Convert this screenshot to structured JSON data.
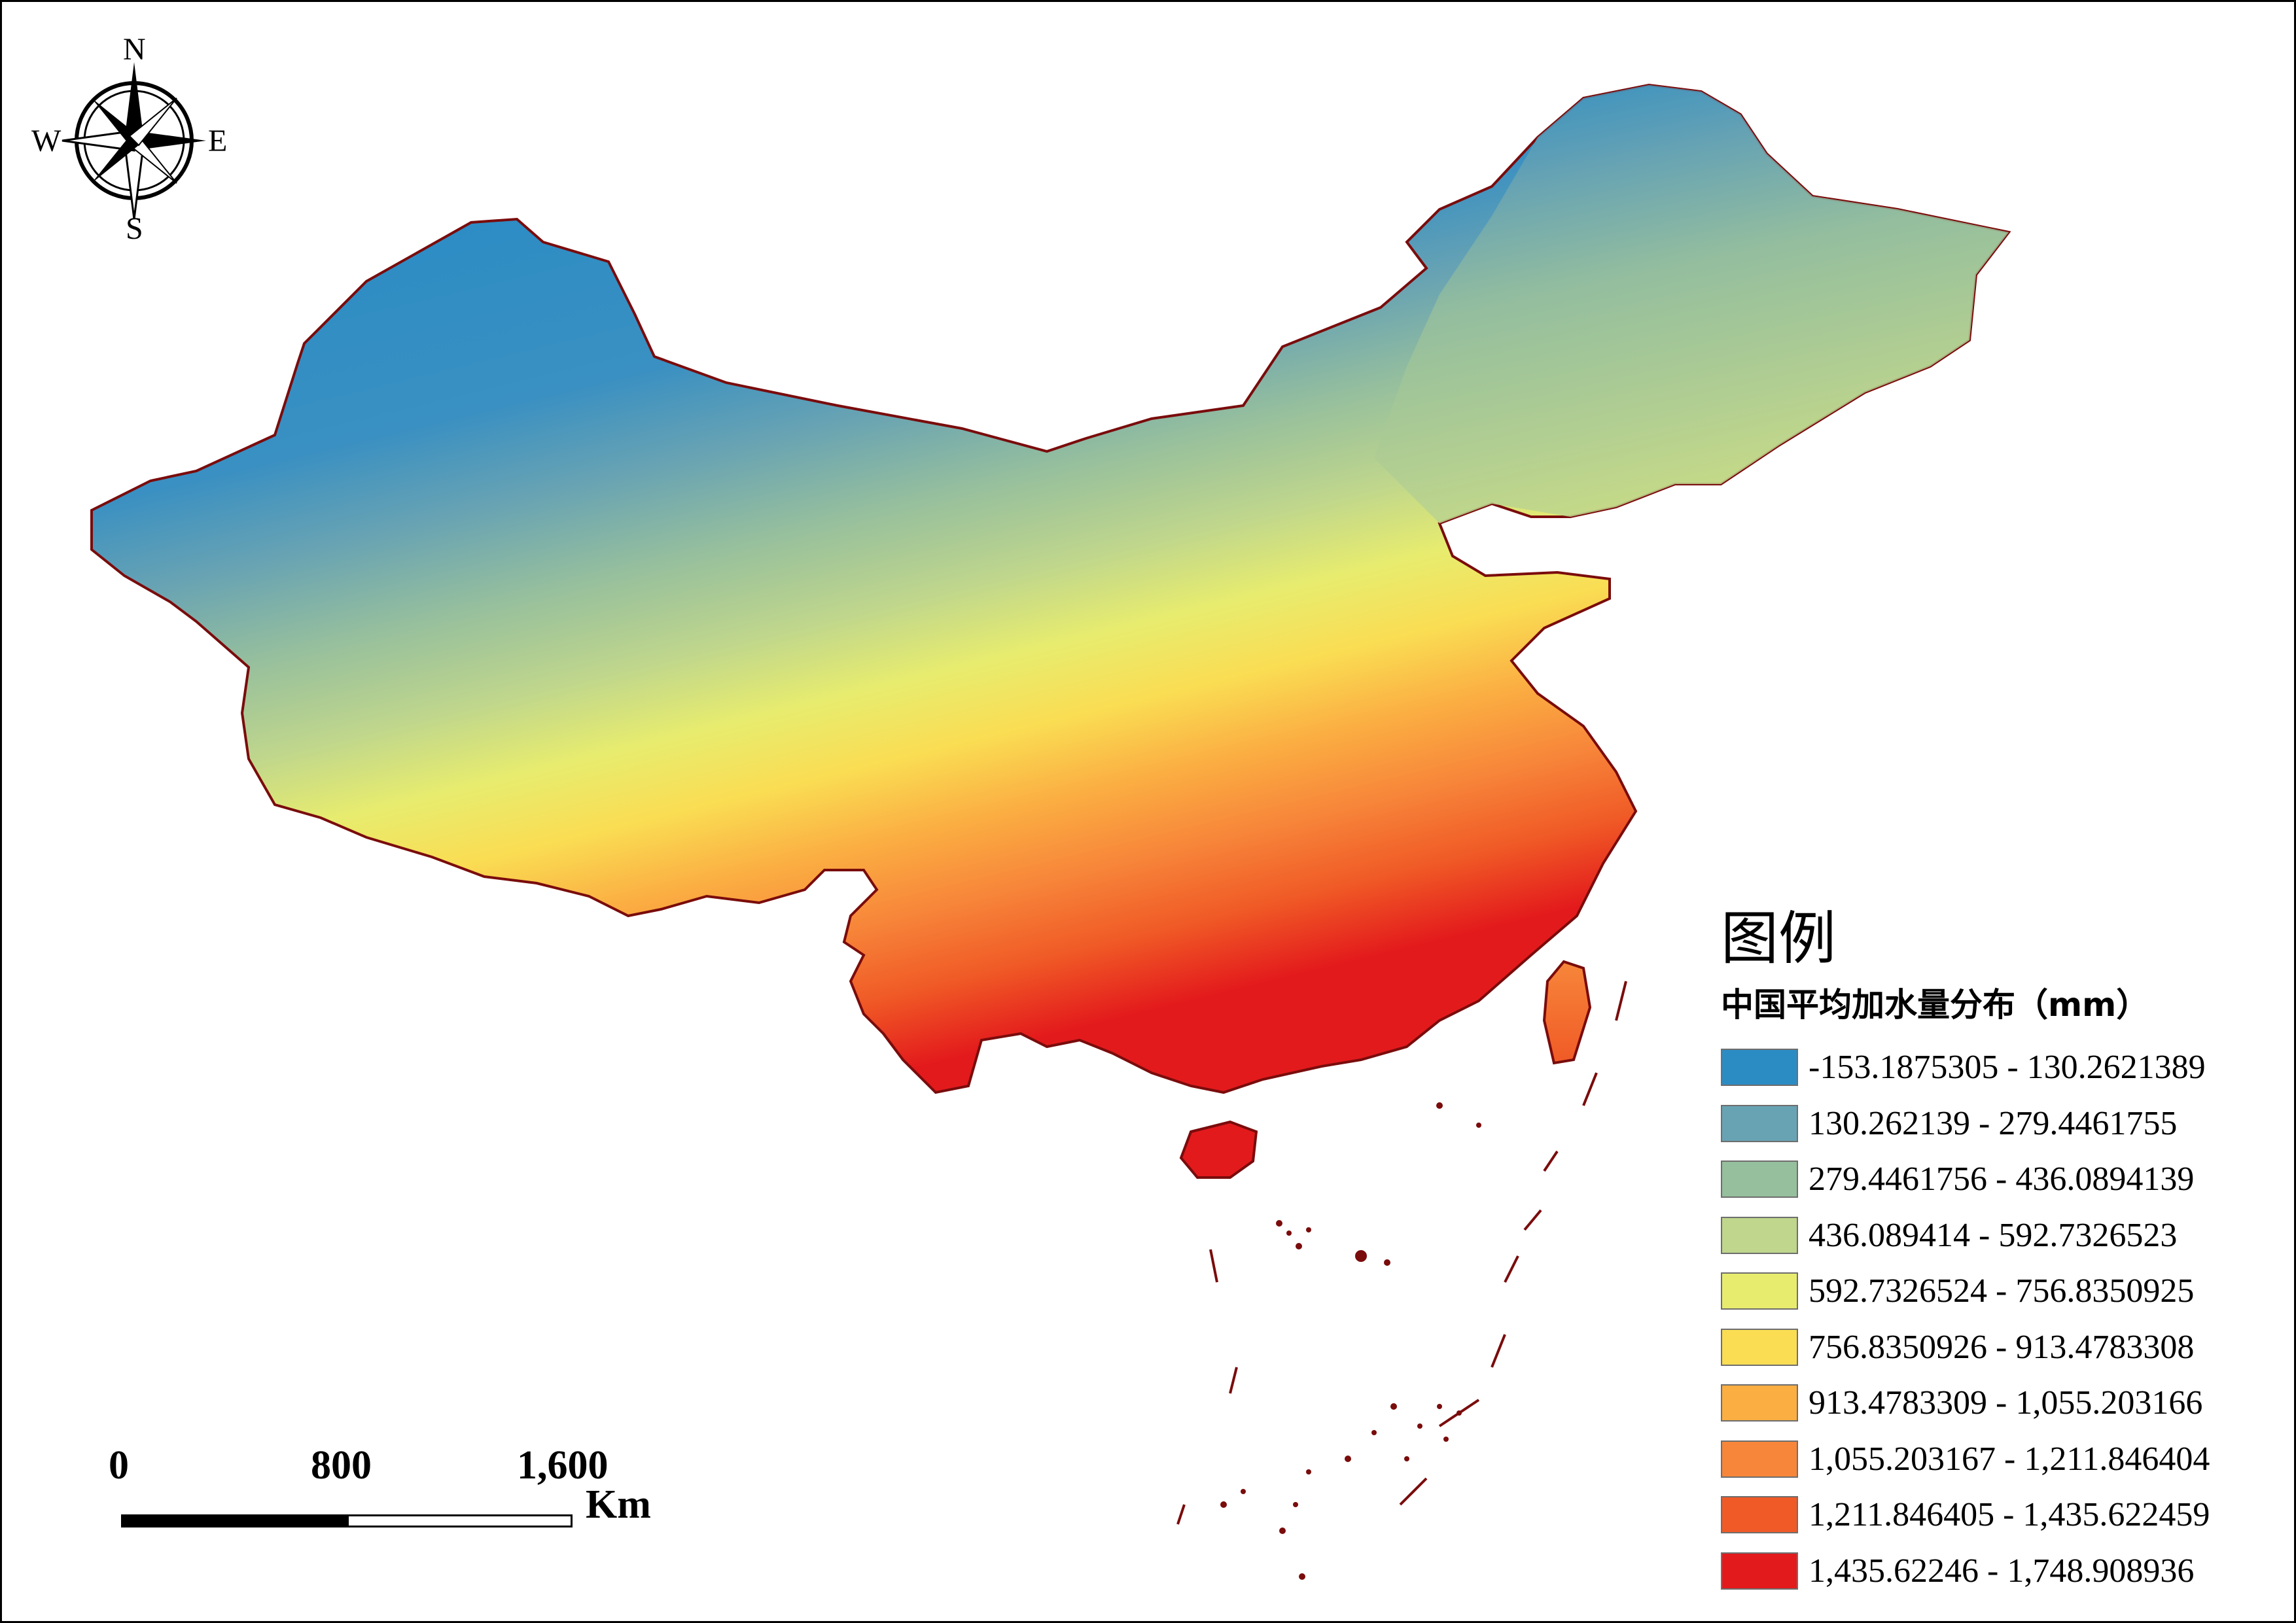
{
  "map": {
    "compass": {
      "north": "N",
      "south": "S",
      "east": "E",
      "west": "W"
    },
    "legend": {
      "title": "图例",
      "subtitle": "中国平均加水量分布（mm）",
      "classes": [
        {
          "label": "-153.1875305 - 130.2621389",
          "color": "#2b8cc4"
        },
        {
          "label": "130.262139 - 279.4461755",
          "color": "#68a3b3"
        },
        {
          "label": "279.4461756 - 436.0894139",
          "color": "#96bf9d"
        },
        {
          "label": "436.089414 - 592.7326523",
          "color": "#bfd68c"
        },
        {
          "label": "592.7326524 - 756.8350925",
          "color": "#e7ec6f"
        },
        {
          "label": "756.8350926 - 913.4783308",
          "color": "#fadd53"
        },
        {
          "label": "913.4783309 - 1,055.203166",
          "color": "#fbae42"
        },
        {
          "label": "1,055.203167 - 1,211.846404",
          "color": "#f7863a"
        },
        {
          "label": "1,211.846405 - 1,435.622459",
          "color": "#f05a26"
        },
        {
          "label": "1,435.62246 - 1,748.908936",
          "color": "#e31a1c"
        }
      ]
    },
    "scale_bar": {
      "ticks": [
        "0",
        "800",
        "1,600"
      ],
      "unit": "Km"
    },
    "boundary_color": "#7a0c0c"
  }
}
